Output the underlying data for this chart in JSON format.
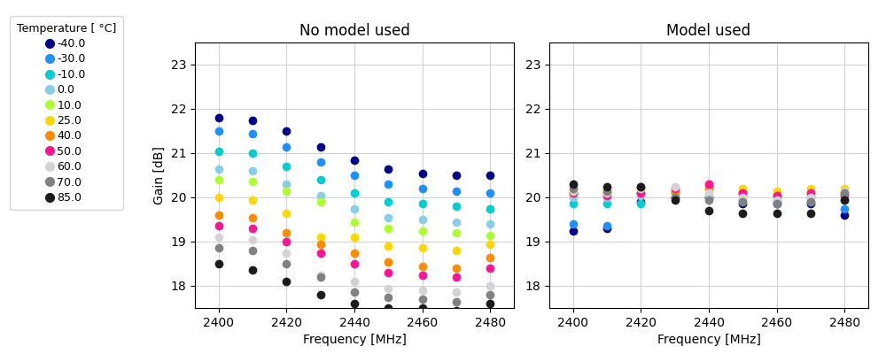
{
  "temperatures": [
    -40.0,
    -30.0,
    -10.0,
    0.0,
    10.0,
    25.0,
    40.0,
    50.0,
    60.0,
    70.0,
    85.0
  ],
  "temp_colors": [
    "#00008B",
    "#1E90FF",
    "#00CED1",
    "#87CEEB",
    "#ADFF2F",
    "#FFD700",
    "#FF8C00",
    "#FF1493",
    "#D3D3D3",
    "#808080",
    "#1C1C1C"
  ],
  "frequencies": [
    2400,
    2410,
    2420,
    2430,
    2440,
    2450,
    2460,
    2470,
    2480
  ],
  "no_model_data": {
    "-40.0": [
      21.8,
      21.75,
      21.5,
      21.15,
      20.85,
      20.65,
      20.55,
      20.5,
      20.5
    ],
    "-30.0": [
      21.5,
      21.45,
      21.15,
      20.8,
      20.5,
      20.3,
      20.2,
      20.15,
      20.1
    ],
    "-10.0": [
      21.05,
      21.0,
      20.7,
      20.4,
      20.1,
      19.9,
      19.85,
      19.8,
      19.75
    ],
    "0.0": [
      20.65,
      20.6,
      20.3,
      20.05,
      19.75,
      19.55,
      19.5,
      19.45,
      19.4
    ],
    "10.0": [
      20.4,
      20.35,
      20.15,
      19.9,
      19.45,
      19.3,
      19.25,
      19.2,
      19.15
    ],
    "25.0": [
      20.0,
      19.95,
      19.65,
      19.1,
      19.1,
      18.9,
      18.85,
      18.8,
      18.95
    ],
    "40.0": [
      19.6,
      19.55,
      19.2,
      18.95,
      18.75,
      18.55,
      18.45,
      18.4,
      18.65
    ],
    "50.0": [
      19.35,
      19.3,
      19.0,
      18.75,
      18.5,
      18.3,
      18.25,
      18.2,
      18.4
    ],
    "60.0": [
      19.1,
      19.05,
      18.75,
      18.25,
      18.1,
      17.95,
      17.9,
      17.85,
      18.0
    ],
    "70.0": [
      18.85,
      18.8,
      18.5,
      18.2,
      17.85,
      17.75,
      17.7,
      17.65,
      17.8
    ],
    "85.0": [
      18.5,
      18.35,
      18.1,
      17.8,
      17.6,
      17.5,
      17.5,
      17.45,
      17.6
    ]
  },
  "model_data": {
    "-40.0": [
      19.25,
      19.3,
      19.9,
      20.0,
      20.0,
      19.85,
      19.85,
      19.85,
      19.6
    ],
    "-30.0": [
      19.4,
      19.35,
      20.1,
      20.1,
      20.0,
      19.95,
      19.9,
      19.9,
      19.75
    ],
    "-10.0": [
      19.85,
      19.85,
      19.85,
      20.1,
      20.0,
      20.1,
      19.95,
      20.0,
      19.95
    ],
    "0.0": [
      20.0,
      20.0,
      20.05,
      20.1,
      20.05,
      20.1,
      20.0,
      20.05,
      20.05
    ],
    "10.0": [
      20.1,
      20.1,
      20.15,
      20.15,
      20.25,
      20.15,
      20.1,
      20.1,
      20.1
    ],
    "25.0": [
      20.15,
      20.15,
      20.2,
      20.2,
      20.3,
      20.2,
      20.15,
      20.2,
      20.2
    ],
    "40.0": [
      20.1,
      20.1,
      20.1,
      20.15,
      20.2,
      20.1,
      20.05,
      20.1,
      20.1
    ],
    "50.0": [
      20.1,
      20.05,
      20.1,
      20.2,
      20.3,
      20.1,
      20.05,
      20.1,
      20.05
    ],
    "60.0": [
      20.15,
      20.1,
      20.2,
      20.25,
      20.1,
      20.0,
      19.95,
      20.0,
      20.15
    ],
    "70.0": [
      20.2,
      20.15,
      20.25,
      20.0,
      19.95,
      19.9,
      19.85,
      19.9,
      20.1
    ],
    "85.0": [
      20.3,
      20.25,
      20.25,
      19.95,
      19.7,
      19.65,
      19.65,
      19.65,
      19.95
    ]
  },
  "ylabel": "Gain [dB]",
  "xlabel": "Frequency [MHz]",
  "title_left": "No model used",
  "title_right": "Model used",
  "legend_title": "Temperature [ °C]",
  "ylim": [
    17.5,
    23.5
  ],
  "yticks": [
    18,
    19,
    20,
    21,
    22,
    23
  ],
  "xticks": [
    2400,
    2420,
    2440,
    2460,
    2480
  ],
  "marker_size": 7
}
